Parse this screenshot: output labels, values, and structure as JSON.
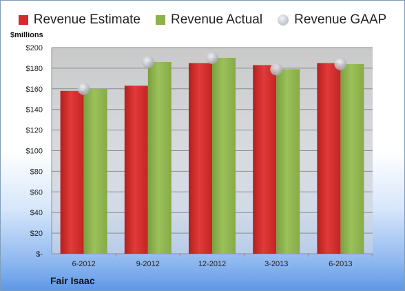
{
  "chart_data": {
    "type": "bar",
    "categories": [
      "6-2012",
      "9-2012",
      "12-2012",
      "3-2013",
      "6-2013"
    ],
    "series": [
      {
        "name": "Revenue Estimate",
        "values": [
          158,
          163,
          185,
          183,
          185
        ],
        "color": "#d42a2a"
      },
      {
        "name": "Revenue Actual",
        "values": [
          160,
          186,
          190,
          179,
          184
        ],
        "color": "#8cb24b"
      },
      {
        "name": "Revenue GAAP",
        "values": [
          160,
          186,
          190,
          179,
          184
        ],
        "color": "#b8bcc6",
        "marker": "circle"
      }
    ],
    "ylabel": "$millions",
    "ylim": [
      0,
      200
    ],
    "yticks": [
      0,
      20,
      40,
      60,
      80,
      100,
      120,
      140,
      160,
      180,
      200
    ],
    "ytick_labels": [
      "$-",
      "$20",
      "$40",
      "$60",
      "$80",
      "$100",
      "$120",
      "$140",
      "$160",
      "$180",
      "$200"
    ],
    "legend_position": "top",
    "grid": true
  },
  "company_name": "Fair Isaac"
}
